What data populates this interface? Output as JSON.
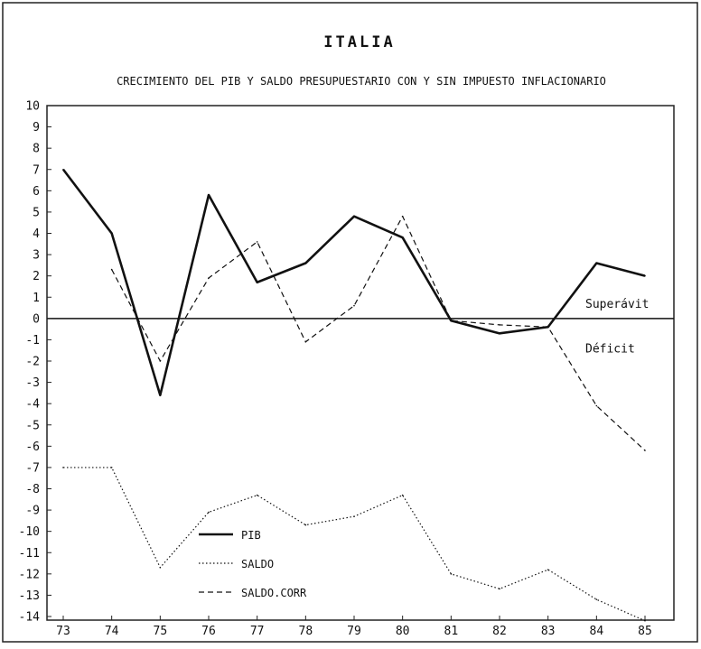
{
  "chart_data": {
    "type": "line",
    "title": "ITALIA",
    "subtitle": "CRECIMIENTO DEL PIB Y SALDO PRESUPUESTARIO CON Y SIN IMPUESTO INFLACIONARIO",
    "xlabel": "",
    "ylabel": "",
    "categories": [
      "73",
      "74",
      "75",
      "76",
      "77",
      "78",
      "79",
      "80",
      "81",
      "82",
      "83",
      "84",
      "85"
    ],
    "y_ticks": [
      "10",
      "9",
      "8",
      "7",
      "6",
      "5",
      "4",
      "3",
      "2",
      "1",
      "0",
      "-1",
      "-2",
      "-3",
      "-4",
      "-5",
      "-6",
      "-7",
      "-8",
      "-9",
      "-10",
      "-11",
      "-12",
      "-13",
      "-14"
    ],
    "ylim": [
      -14,
      10
    ],
    "grid": false,
    "legend_position": "lower-left",
    "series": [
      {
        "name": "PIB",
        "style": "solid-thick",
        "x": [
          73,
          74,
          75,
          76,
          77,
          78,
          79,
          80,
          81,
          82,
          83,
          84,
          85
        ],
        "values": [
          7.0,
          4.0,
          -3.6,
          5.8,
          1.7,
          2.6,
          4.8,
          3.8,
          -0.1,
          -0.7,
          -0.4,
          2.6,
          2.0
        ]
      },
      {
        "name": "SALDO",
        "style": "dotted",
        "x": [
          73,
          74,
          75,
          76,
          77,
          78,
          79,
          80,
          81,
          82,
          83,
          84,
          85
        ],
        "values": [
          -7.0,
          -7.0,
          -11.7,
          -9.1,
          -8.3,
          -9.7,
          -9.3,
          -8.3,
          -12.0,
          -12.7,
          -11.8,
          -13.2,
          -14.2
        ]
      },
      {
        "name": "SALDO.CORR",
        "style": "dashed",
        "x": [
          74,
          75,
          76,
          77,
          78,
          79,
          80,
          81,
          82,
          83,
          84,
          85
        ],
        "values": [
          2.3,
          -2.0,
          1.9,
          3.6,
          -1.1,
          0.6,
          4.8,
          -0.1,
          -0.3,
          -0.4,
          -4.1,
          -6.2
        ]
      }
    ],
    "annotations": [
      {
        "text": "Superávit"
      },
      {
        "text": "Déficit"
      }
    ],
    "colors": {
      "lines": "#111111",
      "background": "#ffffff"
    }
  }
}
